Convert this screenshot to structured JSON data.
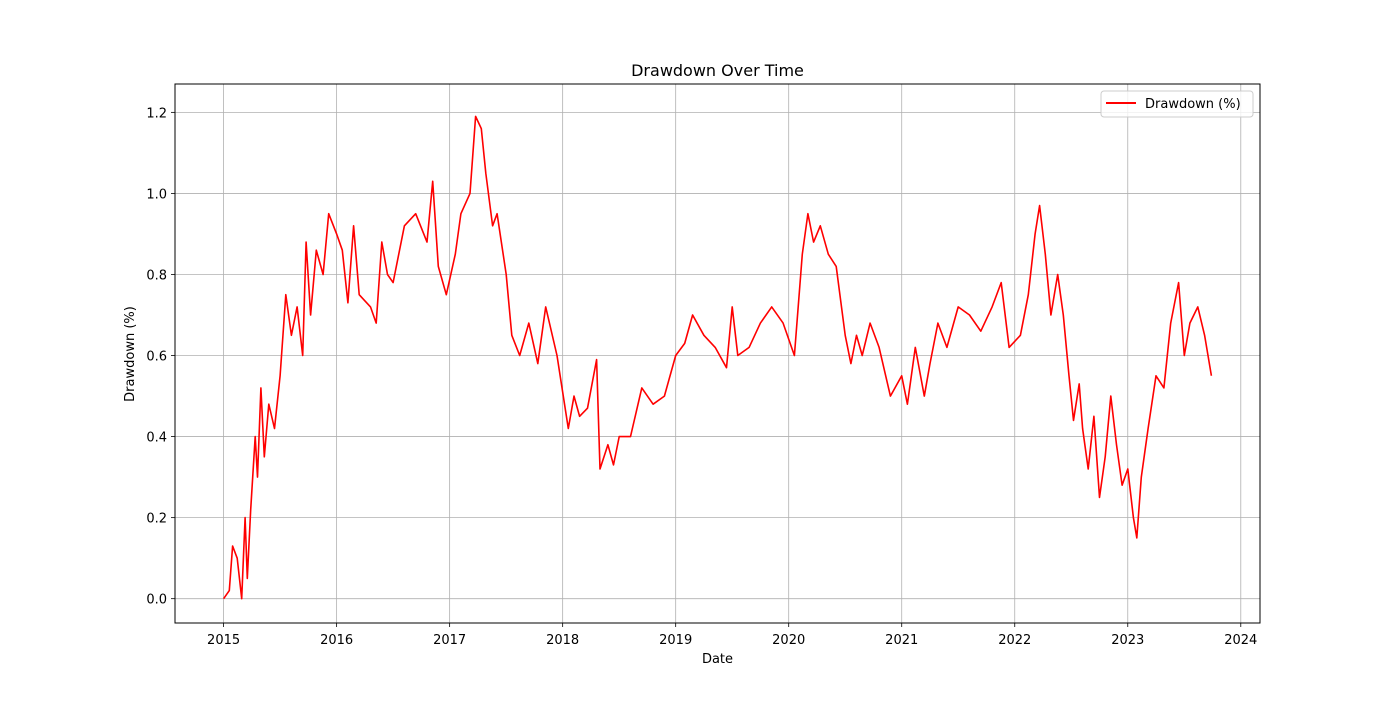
{
  "chart_data": {
    "type": "line",
    "title": "Drawdown Over Time",
    "xlabel": "Date",
    "ylabel": "Drawdown (%)",
    "xlim": [
      2014.57,
      2024.17
    ],
    "ylim": [
      -0.06,
      1.27
    ],
    "grid": true,
    "legend_location": "top-right",
    "colors": {
      "line": "#ff0000",
      "grid": "#b0b0b0",
      "axis": "#000000",
      "legend_border": "#cccccc"
    },
    "x_ticks": [
      {
        "value": 2015,
        "label": "2015"
      },
      {
        "value": 2016,
        "label": "2016"
      },
      {
        "value": 2017,
        "label": "2017"
      },
      {
        "value": 2018,
        "label": "2018"
      },
      {
        "value": 2019,
        "label": "2019"
      },
      {
        "value": 2020,
        "label": "2020"
      },
      {
        "value": 2021,
        "label": "2021"
      },
      {
        "value": 2022,
        "label": "2022"
      },
      {
        "value": 2023,
        "label": "2023"
      },
      {
        "value": 2024,
        "label": "2024"
      }
    ],
    "y_ticks": [
      {
        "value": 0.0,
        "label": "0.0"
      },
      {
        "value": 0.2,
        "label": "0.2"
      },
      {
        "value": 0.4,
        "label": "0.4"
      },
      {
        "value": 0.6,
        "label": "0.6"
      },
      {
        "value": 0.8,
        "label": "0.8"
      },
      {
        "value": 1.0,
        "label": "1.0"
      },
      {
        "value": 1.2,
        "label": "1.2"
      }
    ],
    "series": [
      {
        "name": "Drawdown (%)",
        "x": [
          2015.0,
          2015.05,
          2015.08,
          2015.12,
          2015.16,
          2015.19,
          2015.21,
          2015.24,
          2015.28,
          2015.3,
          2015.33,
          2015.36,
          2015.4,
          2015.45,
          2015.5,
          2015.55,
          2015.6,
          2015.65,
          2015.7,
          2015.73,
          2015.77,
          2015.82,
          2015.88,
          2015.93,
          2016.0,
          2016.05,
          2016.1,
          2016.15,
          2016.2,
          2016.3,
          2016.35,
          2016.4,
          2016.45,
          2016.5,
          2016.6,
          2016.7,
          2016.8,
          2016.85,
          2016.9,
          2016.97,
          2017.05,
          2017.1,
          2017.18,
          2017.23,
          2017.28,
          2017.32,
          2017.38,
          2017.42,
          2017.5,
          2017.55,
          2017.62,
          2017.7,
          2017.78,
          2017.85,
          2017.95,
          2018.05,
          2018.1,
          2018.15,
          2018.22,
          2018.3,
          2018.33,
          2018.4,
          2018.45,
          2018.5,
          2018.6,
          2018.7,
          2018.8,
          2018.9,
          2019.0,
          2019.08,
          2019.15,
          2019.25,
          2019.35,
          2019.45,
          2019.5,
          2019.55,
          2019.65,
          2019.75,
          2019.85,
          2019.95,
          2020.05,
          2020.12,
          2020.17,
          2020.22,
          2020.28,
          2020.35,
          2020.42,
          2020.5,
          2020.55,
          2020.6,
          2020.65,
          2020.72,
          2020.8,
          2020.9,
          2021.0,
          2021.05,
          2021.12,
          2021.2,
          2021.25,
          2021.32,
          2021.4,
          2021.5,
          2021.6,
          2021.7,
          2021.8,
          2021.88,
          2021.95,
          2022.05,
          2022.12,
          2022.18,
          2022.22,
          2022.27,
          2022.32,
          2022.38,
          2022.43,
          2022.48,
          2022.52,
          2022.57,
          2022.6,
          2022.65,
          2022.7,
          2022.75,
          2022.8,
          2022.85,
          2022.9,
          2022.95,
          2023.0,
          2023.05,
          2023.08,
          2023.12,
          2023.18,
          2023.25,
          2023.32,
          2023.38,
          2023.45,
          2023.5,
          2023.55,
          2023.62,
          2023.68,
          2023.74
        ],
        "y": [
          0.0,
          0.02,
          0.13,
          0.1,
          0.0,
          0.2,
          0.05,
          0.22,
          0.4,
          0.3,
          0.52,
          0.35,
          0.48,
          0.42,
          0.55,
          0.75,
          0.65,
          0.72,
          0.6,
          0.88,
          0.7,
          0.86,
          0.8,
          0.95,
          0.9,
          0.86,
          0.73,
          0.92,
          0.75,
          0.72,
          0.68,
          0.88,
          0.8,
          0.78,
          0.92,
          0.95,
          0.88,
          1.03,
          0.82,
          0.75,
          0.85,
          0.95,
          1.0,
          1.19,
          1.16,
          1.05,
          0.92,
          0.95,
          0.8,
          0.65,
          0.6,
          0.68,
          0.58,
          0.72,
          0.6,
          0.42,
          0.5,
          0.45,
          0.47,
          0.59,
          0.32,
          0.38,
          0.33,
          0.4,
          0.4,
          0.52,
          0.48,
          0.5,
          0.6,
          0.63,
          0.7,
          0.65,
          0.62,
          0.57,
          0.72,
          0.6,
          0.62,
          0.68,
          0.72,
          0.68,
          0.6,
          0.85,
          0.95,
          0.88,
          0.92,
          0.85,
          0.82,
          0.65,
          0.58,
          0.65,
          0.6,
          0.68,
          0.62,
          0.5,
          0.55,
          0.48,
          0.62,
          0.5,
          0.58,
          0.68,
          0.62,
          0.72,
          0.7,
          0.66,
          0.72,
          0.78,
          0.62,
          0.65,
          0.75,
          0.9,
          0.97,
          0.85,
          0.7,
          0.8,
          0.7,
          0.55,
          0.44,
          0.53,
          0.42,
          0.32,
          0.45,
          0.25,
          0.35,
          0.5,
          0.38,
          0.28,
          0.32,
          0.2,
          0.15,
          0.3,
          0.42,
          0.55,
          0.52,
          0.68,
          0.78,
          0.6,
          0.68,
          0.72,
          0.65,
          0.55
        ]
      }
    ]
  }
}
